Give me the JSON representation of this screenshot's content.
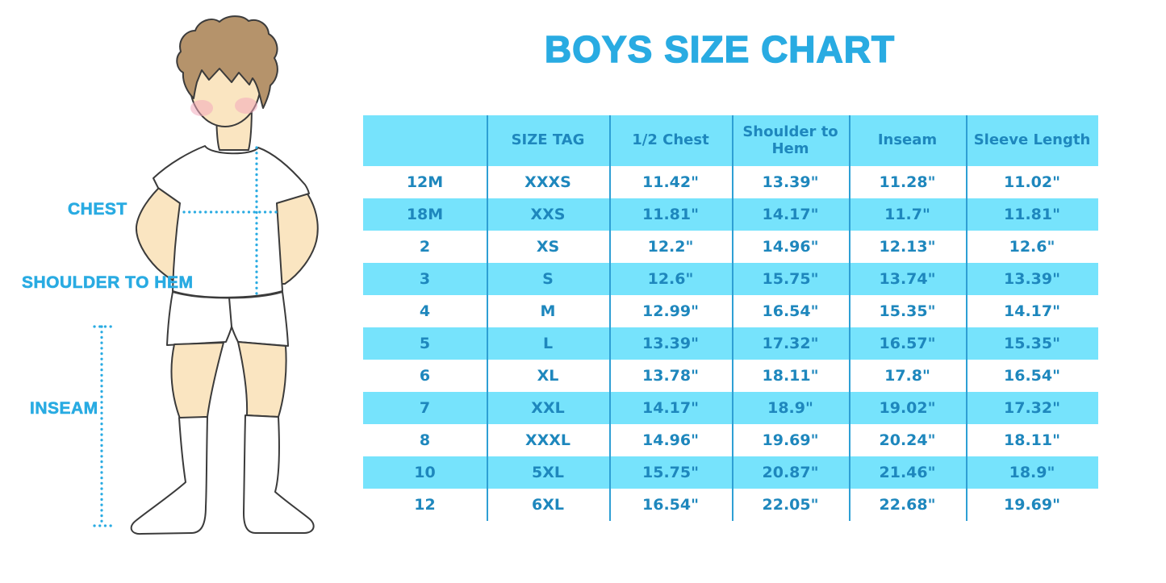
{
  "title": "BOYS SIZE CHART",
  "figure": {
    "labels": {
      "chest": "CHEST",
      "shoulder_to_hem": "SHOULDER TO HEM",
      "inseam": "INSEAM"
    }
  },
  "chart_data": {
    "type": "table",
    "title": "BOYS SIZE CHART",
    "columns": [
      "",
      "SIZE TAG",
      "1/2 Chest",
      "Shoulder to Hem",
      "Inseam",
      "Sleeve Length"
    ],
    "rows": [
      [
        "12M",
        "XXXS",
        "11.42\"",
        "13.39\"",
        "11.28\"",
        "11.02\""
      ],
      [
        "18M",
        "XXS",
        "11.81\"",
        "14.17\"",
        "11.7\"",
        "11.81\""
      ],
      [
        "2",
        "XS",
        "12.2\"",
        "14.96\"",
        "12.13\"",
        "12.6\""
      ],
      [
        "3",
        "S",
        "12.6\"",
        "15.75\"",
        "13.74\"",
        "13.39\""
      ],
      [
        "4",
        "M",
        "12.99\"",
        "16.54\"",
        "15.35\"",
        "14.17\""
      ],
      [
        "5",
        "L",
        "13.39\"",
        "17.32\"",
        "16.57\"",
        "15.35\""
      ],
      [
        "6",
        "XL",
        "13.78\"",
        "18.11\"",
        "17.8\"",
        "16.54\""
      ],
      [
        "7",
        "XXL",
        "14.17\"",
        "18.9\"",
        "19.02\"",
        "17.32\""
      ],
      [
        "8",
        "XXXL",
        "14.96\"",
        "19.69\"",
        "20.24\"",
        "18.11\""
      ],
      [
        "10",
        "5XL",
        "15.75\"",
        "20.87\"",
        "21.46\"",
        "18.9\""
      ],
      [
        "12",
        "6XL",
        "16.54\"",
        "22.05\"",
        "22.68\"",
        "19.69\""
      ]
    ]
  },
  "colors": {
    "title_blue": "#29ABE2",
    "table_text": "#1E87BD",
    "band": "#76E3FC",
    "divider": "#2E9FD4",
    "dotted": "#29ABE2",
    "skin": "#FAE5C1",
    "hair": "#B5936B",
    "outline": "#3B3B3B",
    "cheek": "#F2A9BC"
  }
}
